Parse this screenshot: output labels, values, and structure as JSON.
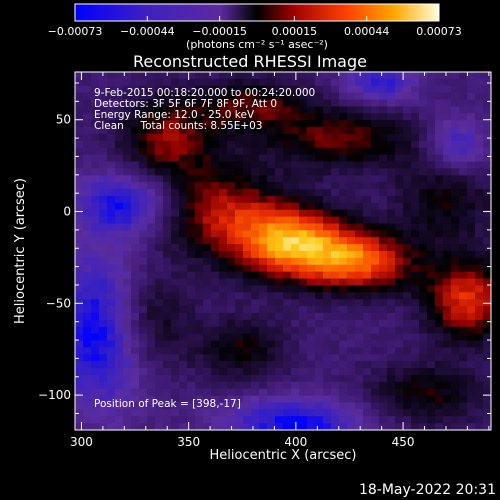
{
  "chart_data": {
    "type": "heatmap",
    "title": "Reconstructed RHESSI Image",
    "xlabel": "Heliocentric X (arcsec)",
    "ylabel": "Heliocentric Y (arcsec)",
    "xlim": [
      297,
      491
    ],
    "ylim": [
      -119,
      76
    ],
    "xticks": [
      "300",
      "350",
      "400",
      "450"
    ],
    "yticks": [
      "50",
      "0",
      "-50",
      "-100"
    ],
    "colorbar": {
      "ticks": [
        "-0.00073",
        "-0.00044",
        "-0.00015",
        "0.00015",
        "0.00044",
        "0.00073"
      ],
      "unit_label": "(photons cm⁻² s⁻¹ asec⁻²)",
      "range": [
        -0.00073,
        0.00073
      ]
    },
    "annotations": [
      "9-Feb-2015 00:18:20.000 to 00:24:20.000",
      "Detectors: 3F 5F 6F 7F 8F 9F, Att 0",
      "Energy Range: 12.0 - 25.0 keV",
      "Clean     Total counts: 8.55E+03"
    ],
    "peak_label": "Position of Peak = [398,-17]",
    "peak_position": [
      398,
      -17
    ],
    "sources": [
      {
        "x": 398,
        "y": -17,
        "amp": 1.0,
        "sx": 18,
        "sy": 14
      },
      {
        "x": 430,
        "y": -27,
        "amp": 0.85,
        "sx": 18,
        "sy": 12
      },
      {
        "x": 365,
        "y": 0,
        "amp": 0.6,
        "sx": 20,
        "sy": 18
      },
      {
        "x": 480,
        "y": -48,
        "amp": 0.75,
        "sx": 14,
        "sy": 16
      },
      {
        "x": 340,
        "y": 40,
        "amp": 0.55,
        "sx": 16,
        "sy": 16
      },
      {
        "x": 420,
        "y": 40,
        "amp": 0.5,
        "sx": 24,
        "sy": 12
      },
      {
        "x": 380,
        "y": 58,
        "amp": 0.45,
        "sx": 18,
        "sy": 10
      },
      {
        "x": 330,
        "y": -60,
        "amp": 0.45,
        "sx": 14,
        "sy": 20
      },
      {
        "x": 375,
        "y": -75,
        "amp": 0.4,
        "sx": 14,
        "sy": 12
      },
      {
        "x": 470,
        "y": 10,
        "amp": 0.4,
        "sx": 16,
        "sy": 18
      },
      {
        "x": 460,
        "y": -100,
        "amp": 0.4,
        "sx": 20,
        "sy": 12
      },
      {
        "x": 310,
        "y": -65,
        "amp": -0.7,
        "sx": 16,
        "sy": 30
      },
      {
        "x": 320,
        "y": 5,
        "amp": -0.6,
        "sx": 16,
        "sy": 12
      },
      {
        "x": 440,
        "y": 70,
        "amp": -0.5,
        "sx": 12,
        "sy": 8
      },
      {
        "x": 400,
        "y": -115,
        "amp": -0.6,
        "sx": 24,
        "sy": 10
      },
      {
        "x": 475,
        "y": 35,
        "amp": -0.5,
        "sx": 10,
        "sy": 12
      }
    ]
  },
  "footer": {
    "date": "18-May-2022 20:31"
  }
}
